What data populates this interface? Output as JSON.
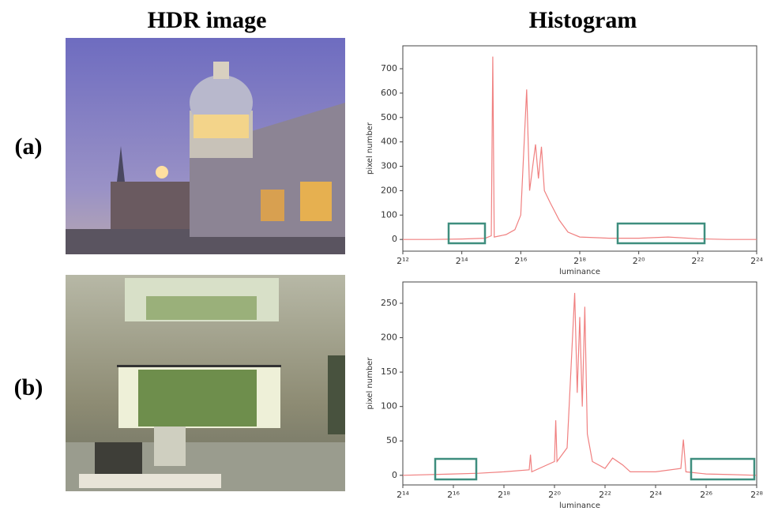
{
  "headers": [
    "HDR image",
    "Histogram"
  ],
  "row_labels": [
    "(a)",
    "(b)"
  ],
  "chart_data": [
    {
      "type": "line",
      "xlabel": "luminance",
      "ylabel": "pixel number",
      "xscale": "log2",
      "color": "#f08080",
      "xlim": [
        4096,
        16777216
      ],
      "ylim": [
        -48,
        794
      ],
      "xticks": [
        {
          "value": 4096,
          "label": "2¹²"
        },
        {
          "value": 16384,
          "label": "2¹⁴"
        },
        {
          "value": 65536,
          "label": "2¹⁶"
        },
        {
          "value": 262144,
          "label": "2¹⁸"
        },
        {
          "value": 1048576,
          "label": "2²⁰"
        },
        {
          "value": 4194304,
          "label": "2²²"
        },
        {
          "value": 16777216,
          "label": "2²⁴"
        }
      ],
      "yticks": [
        0,
        100,
        200,
        300,
        400,
        500,
        600,
        700
      ],
      "x": [
        4096,
        8192,
        16384,
        28526,
        32768,
        33924,
        35120,
        46341,
        57052,
        65536,
        75281,
        80684,
        92682,
        99334,
        106463,
        114105,
        131072,
        161371,
        198668,
        262144,
        524288,
        1048576,
        2097152,
        4194304,
        8388608,
        16777216
      ],
      "values": [
        0,
        0,
        2,
        5,
        15,
        750,
        10,
        20,
        40,
        100,
        615,
        200,
        390,
        250,
        380,
        200,
        150,
        80,
        30,
        10,
        5,
        5,
        10,
        3,
        0,
        0
      ]
    },
    {
      "type": "line",
      "xlabel": "luminance",
      "ylabel": "pixel number",
      "xscale": "log2",
      "color": "#f08080",
      "xlim": [
        16384,
        268435456
      ],
      "ylim": [
        -14,
        281
      ],
      "xticks": [
        {
          "value": 16384,
          "label": "2¹⁴"
        },
        {
          "value": 65536,
          "label": "2¹⁶"
        },
        {
          "value": 262144,
          "label": "2¹⁸"
        },
        {
          "value": 1048576,
          "label": "2²⁰"
        },
        {
          "value": 4194304,
          "label": "2²²"
        },
        {
          "value": 16777216,
          "label": "2²⁴"
        },
        {
          "value": 67108864,
          "label": "2²⁶"
        },
        {
          "value": 268435456,
          "label": "2²⁸"
        }
      ],
      "yticks": [
        0,
        50,
        100,
        150,
        200,
        250
      ],
      "x": [
        16384,
        65536,
        131072,
        262144,
        524288,
        542803,
        561950,
        1048576,
        1085606,
        1123900,
        1482910,
        1825677,
        1956674,
        2097152,
        2247616,
        2408931,
        2581740,
        2965821,
        4194304,
        5163465,
        6813500,
        8388608,
        16777216,
        33554432,
        35962815,
        38543920,
        67108864,
        134217728,
        268435456
      ],
      "values": [
        0,
        2,
        3,
        5,
        8,
        30,
        5,
        20,
        80,
        20,
        40,
        265,
        120,
        230,
        100,
        245,
        60,
        20,
        10,
        25,
        15,
        5,
        5,
        10,
        52,
        5,
        2,
        1,
        0
      ]
    }
  ]
}
